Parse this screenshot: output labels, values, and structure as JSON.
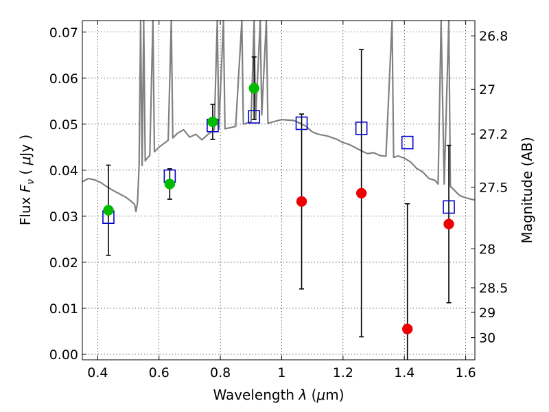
{
  "chart_data": {
    "type": "scatter",
    "xlabel": "Wavelength  λ (μm)",
    "ylabel": "Flux  F_ν  ( μJy )",
    "ylabel_parts": {
      "prefix": "Flux  ",
      "symbol": "F",
      "subscript": "ν",
      "mid": "  ( ",
      "mu": "μ",
      "suffix": "Jy )"
    },
    "xlabel_parts": {
      "prefix": "Wavelength  ",
      "symbol": "λ",
      "mid": " (",
      "mu": "μ",
      "suffix": "m)"
    },
    "y2label": "Magnitude (AB)",
    "xlim": [
      0.35,
      1.63
    ],
    "ylim": [
      -0.0012,
      0.0725
    ],
    "grid": true,
    "x_ticks": [
      0.4,
      0.6,
      0.8,
      1.0,
      1.2,
      1.4,
      1.6
    ],
    "x_tick_labels": [
      "0.4",
      "0.6",
      "0.8",
      "1",
      "1.2",
      "1.4",
      "1.6"
    ],
    "y_ticks": [
      0.0,
      0.01,
      0.02,
      0.03,
      0.04,
      0.05,
      0.06,
      0.07
    ],
    "y_tick_labels": [
      "0.00",
      "0.01",
      "0.02",
      "0.03",
      "0.04",
      "0.05",
      "0.06",
      "0.07"
    ],
    "mag_ticks": [
      26.8,
      27.0,
      27.2,
      27.5,
      28.0,
      28.5,
      29.0,
      30.0
    ],
    "mag_tick_labels": [
      "26.8",
      "27",
      "27.2",
      "27.5",
      "28",
      "28.5",
      "29",
      "30"
    ],
    "series": [
      {
        "kind": "spectrum",
        "color": "#808080",
        "points": [
          [
            0.35,
            0.0375
          ],
          [
            0.37,
            0.0382
          ],
          [
            0.39,
            0.0379
          ],
          [
            0.41,
            0.0373
          ],
          [
            0.43,
            0.0364
          ],
          [
            0.45,
            0.0356
          ],
          [
            0.47,
            0.0349
          ],
          [
            0.49,
            0.0342
          ],
          [
            0.51,
            0.0332
          ],
          [
            0.52,
            0.0326
          ],
          [
            0.525,
            0.031
          ],
          [
            0.53,
            0.033
          ],
          [
            0.535,
            0.041
          ],
          [
            0.54,
            0.0725
          ],
          [
            0.545,
            0.041
          ],
          [
            0.55,
            0.0725
          ],
          [
            0.555,
            0.042
          ],
          [
            0.56,
            0.0425
          ],
          [
            0.57,
            0.0432
          ],
          [
            0.58,
            0.0725
          ],
          [
            0.585,
            0.044
          ],
          [
            0.6,
            0.045
          ],
          [
            0.62,
            0.046
          ],
          [
            0.63,
            0.0465
          ],
          [
            0.64,
            0.0725
          ],
          [
            0.645,
            0.047
          ],
          [
            0.66,
            0.048
          ],
          [
            0.68,
            0.0488
          ],
          [
            0.7,
            0.0472
          ],
          [
            0.72,
            0.0478
          ],
          [
            0.74,
            0.0466
          ],
          [
            0.76,
            0.0478
          ],
          [
            0.78,
            0.0488
          ],
          [
            0.79,
            0.0725
          ],
          [
            0.795,
            0.049
          ],
          [
            0.81,
            0.0725
          ],
          [
            0.815,
            0.049
          ],
          [
            0.83,
            0.0492
          ],
          [
            0.85,
            0.0495
          ],
          [
            0.87,
            0.0725
          ],
          [
            0.875,
            0.05
          ],
          [
            0.9,
            0.0505
          ],
          [
            0.91,
            0.0725
          ],
          [
            0.915,
            0.051
          ],
          [
            0.93,
            0.0725
          ],
          [
            0.935,
            0.052
          ],
          [
            0.95,
            0.0725
          ],
          [
            0.955,
            0.0502
          ],
          [
            1.0,
            0.051
          ],
          [
            1.04,
            0.0508
          ],
          [
            1.06,
            0.0502
          ],
          [
            1.08,
            0.0495
          ],
          [
            1.1,
            0.0483
          ],
          [
            1.12,
            0.0478
          ],
          [
            1.15,
            0.0474
          ],
          [
            1.18,
            0.0467
          ],
          [
            1.2,
            0.046
          ],
          [
            1.22,
            0.0456
          ],
          [
            1.24,
            0.0449
          ],
          [
            1.26,
            0.0442
          ],
          [
            1.28,
            0.0436
          ],
          [
            1.3,
            0.0438
          ],
          [
            1.32,
            0.0432
          ],
          [
            1.34,
            0.043
          ],
          [
            1.36,
            0.0724
          ],
          [
            1.365,
            0.0428
          ],
          [
            1.38,
            0.0431
          ],
          [
            1.4,
            0.0426
          ],
          [
            1.42,
            0.0418
          ],
          [
            1.44,
            0.0404
          ],
          [
            1.46,
            0.0396
          ],
          [
            1.48,
            0.0382
          ],
          [
            1.5,
            0.0378
          ],
          [
            1.51,
            0.037
          ],
          [
            1.52,
            0.0725
          ],
          [
            1.53,
            0.037
          ],
          [
            1.545,
            0.0725
          ],
          [
            1.55,
            0.0365
          ],
          [
            1.58,
            0.0345
          ],
          [
            1.6,
            0.034
          ],
          [
            1.63,
            0.0335
          ]
        ]
      },
      {
        "kind": "model-squares",
        "color": "#0000cc",
        "points": [
          [
            0.435,
            0.0298
          ],
          [
            0.635,
            0.0387
          ],
          [
            0.775,
            0.0497
          ],
          [
            0.91,
            0.0516
          ],
          [
            1.065,
            0.0502
          ],
          [
            1.26,
            0.0491
          ],
          [
            1.41,
            0.046
          ],
          [
            1.545,
            0.032
          ]
        ]
      },
      {
        "kind": "detections-green",
        "color": "#00bb00",
        "points": [
          [
            0.435,
            0.0313
          ],
          [
            0.635,
            0.037
          ],
          [
            0.775,
            0.0505
          ],
          [
            0.91,
            0.0578
          ]
        ],
        "errors": [
          0.0098,
          0.0033,
          0.0038,
          0.0068
        ]
      },
      {
        "kind": "upper-limits-red",
        "color": "#ee0000",
        "points": [
          [
            1.065,
            0.0332
          ],
          [
            1.26,
            0.035
          ],
          [
            1.41,
            0.0055
          ],
          [
            1.545,
            0.0283
          ]
        ],
        "errors": [
          0.019,
          0.0312,
          0.0272,
          0.0171
        ]
      }
    ]
  }
}
